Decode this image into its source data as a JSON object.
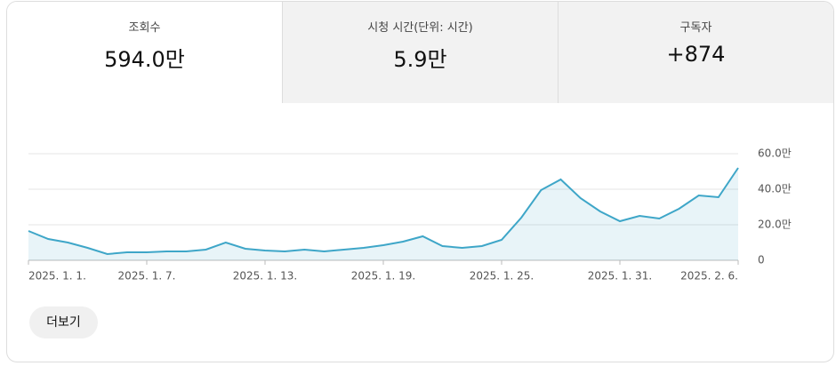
{
  "tabs": [
    {
      "label": "조회수",
      "value": "594.0만"
    },
    {
      "label": "시청 시간(단위: 시간)",
      "value": "5.9만"
    },
    {
      "label": "구독자",
      "value": "+874"
    }
  ],
  "chart_data": {
    "type": "area",
    "categories": [
      "2025. 1. 1.",
      null,
      null,
      null,
      null,
      null,
      "2025. 1. 7.",
      null,
      null,
      null,
      null,
      null,
      "2025. 1. 13.",
      null,
      null,
      null,
      null,
      null,
      "2025. 1. 19.",
      null,
      null,
      null,
      null,
      null,
      "2025. 1. 25.",
      null,
      null,
      null,
      null,
      null,
      "2025. 1. 31.",
      null,
      null,
      null,
      null,
      null,
      "2025. 2. 6."
    ],
    "values": [
      16.5,
      12,
      10,
      7,
      3.5,
      4.5,
      4.5,
      5,
      5,
      6,
      10,
      6.5,
      5.5,
      5,
      6,
      5,
      6,
      7,
      8.5,
      10.5,
      13.5,
      8,
      7,
      8,
      11.5,
      24,
      39.5,
      45.5,
      35,
      27.5,
      22,
      25,
      23.5,
      29,
      36.5,
      35.5,
      52
    ],
    "color": "#3ea6c8",
    "ylim": [
      0,
      60
    ],
    "yticks": [
      0,
      {
        "value": 20,
        "label": "20.0만"
      },
      {
        "value": 40,
        "label": "40.0만"
      },
      {
        "value": 60,
        "label": "60.0만"
      }
    ],
    "grid": true
  },
  "button": "더보기"
}
